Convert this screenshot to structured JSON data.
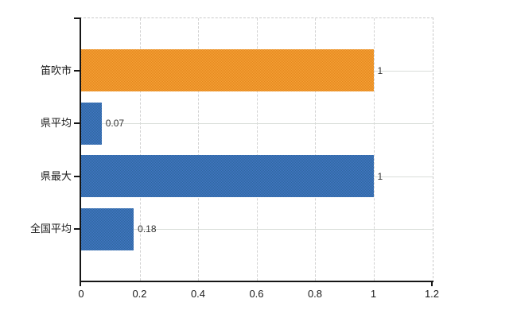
{
  "page": {
    "background": "#ffffff",
    "title": ""
  },
  "chart_data": {
    "type": "bar",
    "orientation": "horizontal",
    "title": "",
    "xlabel": "",
    "ylabel": "",
    "legend": false,
    "grid": true,
    "categories": [
      "笛吹市",
      "県平均",
      "県最大",
      "全国平均"
    ],
    "values": [
      1,
      0.07,
      1,
      0.18
    ],
    "value_labels": [
      "1",
      "0.07",
      "1",
      "0.18"
    ],
    "xlim": [
      0,
      1.2
    ],
    "x_ticks": [
      0,
      0.2,
      0.4,
      0.6,
      0.8,
      1,
      1.2
    ],
    "x_tick_labels": [
      "0",
      "0.2",
      "0.4",
      "0.6",
      "0.8",
      "1",
      "1.2"
    ],
    "bar_colors_avg": [
      "#ed9428",
      "#3b70ad",
      "#3b70ad",
      "#3b70ad"
    ],
    "bar_dither_colors": [
      [
        "#f5a238",
        "#e5871d"
      ],
      [
        "#4377c6",
        "#2e679d"
      ],
      [
        "#4377c6",
        "#2e679d"
      ],
      [
        "#4377c6",
        "#2e679d"
      ]
    ]
  },
  "colors": {
    "axis": "#161616",
    "gridline": "#d2d2d2",
    "frame_dash": "#c9c9c9",
    "category_text": "#1a1a1a",
    "tick_text": "#1a1a1a",
    "value_text": "#333333",
    "background": "#ffffff"
  }
}
